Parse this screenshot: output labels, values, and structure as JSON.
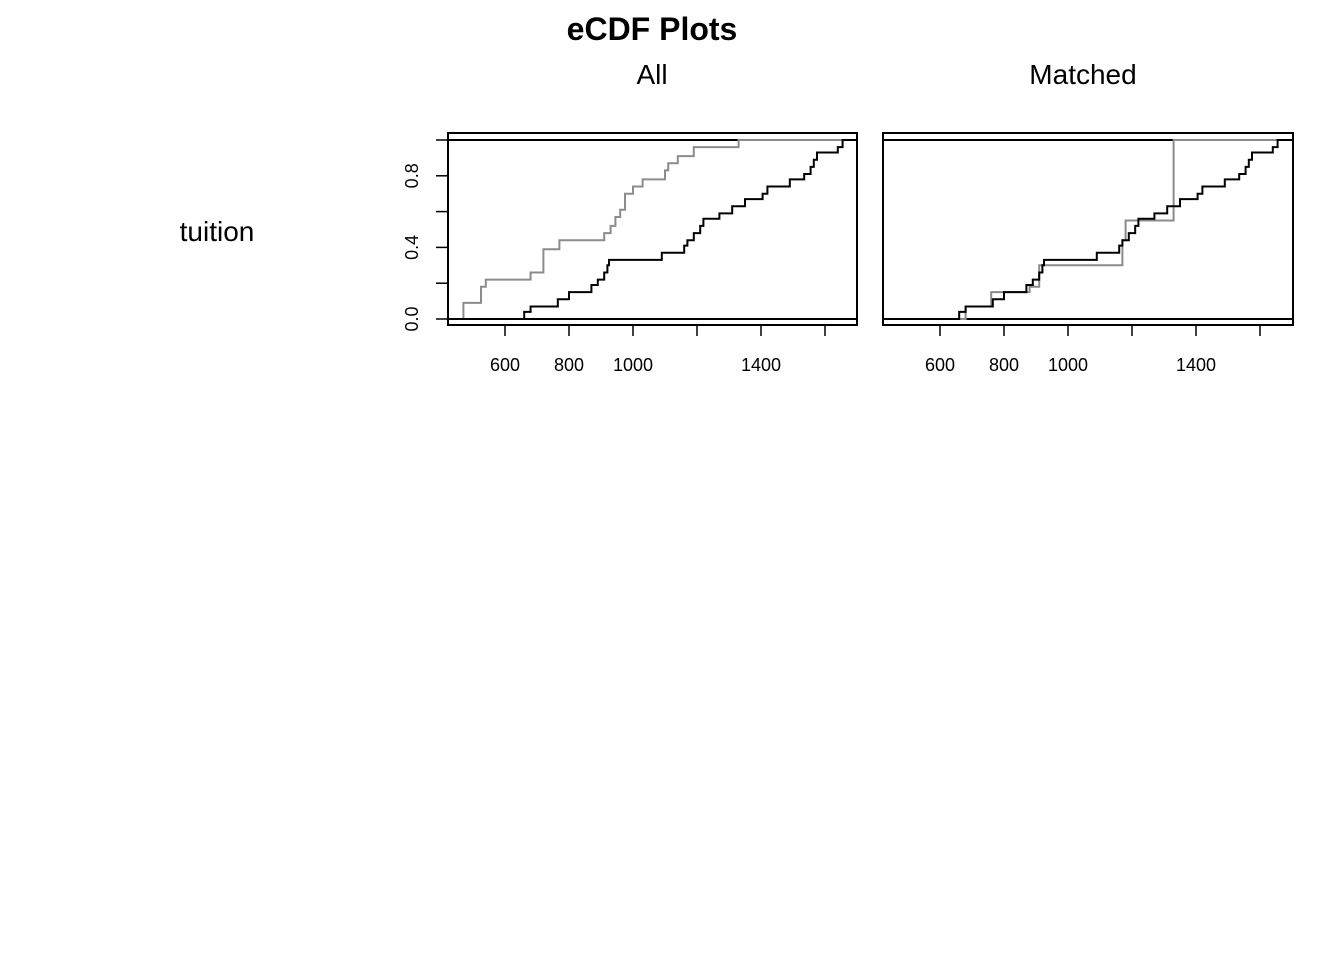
{
  "title": "eCDF Plots",
  "variable": "tuition",
  "chart_data": [
    {
      "type": "line",
      "panel": "All",
      "xlim": [
        400,
        1680
      ],
      "ylim": [
        0,
        1
      ],
      "x_ticks": [
        600,
        800,
        1000,
        1400
      ],
      "x_tick_marks": [
        600,
        800,
        1000,
        1200,
        1400,
        1600
      ],
      "y_ticks": [
        "0.0",
        "0.4",
        "0.8"
      ],
      "y_tick_marks": [
        0,
        0.2,
        0.4,
        0.6,
        0.8,
        1.0
      ],
      "grid": false,
      "series": [
        {
          "color": "#8c8c8c",
          "steps": [
            [
              470,
              0.09
            ],
            [
              525,
              0.18
            ],
            [
              540,
              0.22
            ],
            [
              680,
              0.26
            ],
            [
              720,
              0.39
            ],
            [
              770,
              0.44
            ],
            [
              910,
              0.48
            ],
            [
              930,
              0.52
            ],
            [
              945,
              0.57
            ],
            [
              960,
              0.61
            ],
            [
              975,
              0.7
            ],
            [
              1000,
              0.74
            ],
            [
              1030,
              0.78
            ],
            [
              1100,
              0.83
            ],
            [
              1110,
              0.87
            ],
            [
              1140,
              0.91
            ],
            [
              1190,
              0.96
            ],
            [
              1330,
              1.0
            ]
          ]
        },
        {
          "color": "#000000",
          "steps": [
            [
              660,
              0.04
            ],
            [
              680,
              0.07
            ],
            [
              765,
              0.11
            ],
            [
              800,
              0.15
            ],
            [
              870,
              0.19
            ],
            [
              890,
              0.22
            ],
            [
              910,
              0.26
            ],
            [
              920,
              0.3
            ],
            [
              925,
              0.33
            ],
            [
              1090,
              0.37
            ],
            [
              1160,
              0.41
            ],
            [
              1170,
              0.44
            ],
            [
              1190,
              0.48
            ],
            [
              1210,
              0.52
            ],
            [
              1220,
              0.56
            ],
            [
              1270,
              0.59
            ],
            [
              1310,
              0.63
            ],
            [
              1350,
              0.67
            ],
            [
              1405,
              0.7
            ],
            [
              1420,
              0.74
            ],
            [
              1490,
              0.78
            ],
            [
              1535,
              0.81
            ],
            [
              1555,
              0.85
            ],
            [
              1565,
              0.89
            ],
            [
              1575,
              0.93
            ],
            [
              1640,
              0.96
            ],
            [
              1655,
              1.0
            ]
          ]
        }
      ]
    },
    {
      "type": "line",
      "panel": "Matched",
      "xlim": [
        400,
        1680
      ],
      "ylim": [
        0,
        1
      ],
      "x_ticks": [
        600,
        800,
        1000,
        1400
      ],
      "x_tick_marks": [
        600,
        800,
        1000,
        1200,
        1400,
        1600
      ],
      "y_ticks": [],
      "grid": false,
      "series": [
        {
          "color": "#8c8c8c",
          "steps": [
            [
              680,
              0.07
            ],
            [
              760,
              0.15
            ],
            [
              880,
              0.18
            ],
            [
              910,
              0.3
            ],
            [
              1170,
              0.44
            ],
            [
              1180,
              0.55
            ],
            [
              1330,
              1.0
            ]
          ]
        },
        {
          "color": "#000000",
          "steps": [
            [
              660,
              0.04
            ],
            [
              680,
              0.07
            ],
            [
              765,
              0.11
            ],
            [
              800,
              0.15
            ],
            [
              870,
              0.19
            ],
            [
              890,
              0.22
            ],
            [
              910,
              0.26
            ],
            [
              920,
              0.3
            ],
            [
              925,
              0.33
            ],
            [
              1090,
              0.37
            ],
            [
              1160,
              0.41
            ],
            [
              1170,
              0.44
            ],
            [
              1190,
              0.48
            ],
            [
              1210,
              0.52
            ],
            [
              1220,
              0.56
            ],
            [
              1270,
              0.59
            ],
            [
              1310,
              0.63
            ],
            [
              1350,
              0.67
            ],
            [
              1405,
              0.7
            ],
            [
              1420,
              0.74
            ],
            [
              1490,
              0.78
            ],
            [
              1535,
              0.81
            ],
            [
              1555,
              0.85
            ],
            [
              1565,
              0.89
            ],
            [
              1575,
              0.93
            ],
            [
              1640,
              0.96
            ],
            [
              1655,
              1.0
            ]
          ]
        }
      ]
    }
  ]
}
